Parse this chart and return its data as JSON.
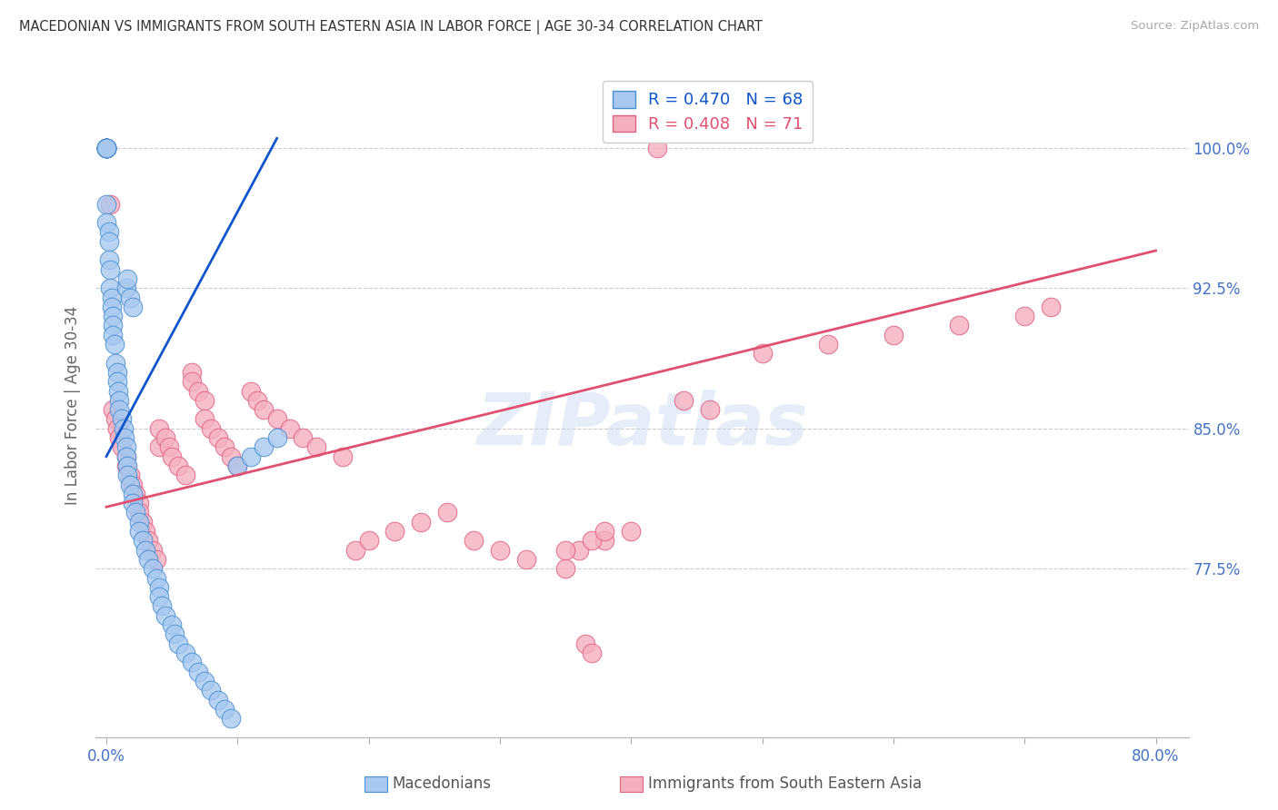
{
  "title": "MACEDONIAN VS IMMIGRANTS FROM SOUTH EASTERN ASIA IN LABOR FORCE | AGE 30-34 CORRELATION CHART",
  "source": "Source: ZipAtlas.com",
  "ylabel_label": "In Labor Force | Age 30-34",
  "yticks": [
    1.0,
    0.925,
    0.85,
    0.775
  ],
  "ytick_labels": [
    "100.0%",
    "92.5%",
    "85.0%",
    "77.5%"
  ],
  "ymin": 0.685,
  "ymax": 1.04,
  "xmin": -0.008,
  "xmax": 0.825,
  "blue_color": "#A8C8F0",
  "pink_color": "#F5B0C0",
  "blue_edge_color": "#4a8fd0",
  "pink_edge_color": "#e06080",
  "blue_line_color": "#1155cc",
  "pink_line_color": "#e05070",
  "axis_tick_color": "#4472c4",
  "title_color": "#333333",
  "source_color": "#aaaaaa",
  "blue_scatter_x": [
    0.0,
    0.0,
    0.0,
    0.0,
    0.0,
    0.0,
    0.0,
    0.0,
    0.0,
    0.0,
    0.002,
    0.002,
    0.002,
    0.003,
    0.003,
    0.004,
    0.004,
    0.005,
    0.005,
    0.005,
    0.006,
    0.007,
    0.008,
    0.008,
    0.009,
    0.01,
    0.01,
    0.012,
    0.013,
    0.014,
    0.015,
    0.015,
    0.016,
    0.016,
    0.018,
    0.02,
    0.02,
    0.022,
    0.025,
    0.025,
    0.028,
    0.03,
    0.032,
    0.035,
    0.038,
    0.04,
    0.04,
    0.042,
    0.045,
    0.05,
    0.052,
    0.055,
    0.06,
    0.065,
    0.07,
    0.075,
    0.08,
    0.085,
    0.09,
    0.095,
    0.1,
    0.11,
    0.12,
    0.13,
    0.015,
    0.016,
    0.018,
    0.02
  ],
  "blue_scatter_y": [
    1.0,
    1.0,
    1.0,
    1.0,
    1.0,
    1.0,
    1.0,
    1.0,
    0.97,
    0.96,
    0.955,
    0.95,
    0.94,
    0.935,
    0.925,
    0.92,
    0.915,
    0.91,
    0.905,
    0.9,
    0.895,
    0.885,
    0.88,
    0.875,
    0.87,
    0.865,
    0.86,
    0.855,
    0.85,
    0.845,
    0.84,
    0.835,
    0.83,
    0.825,
    0.82,
    0.815,
    0.81,
    0.805,
    0.8,
    0.795,
    0.79,
    0.785,
    0.78,
    0.775,
    0.77,
    0.765,
    0.76,
    0.755,
    0.75,
    0.745,
    0.74,
    0.735,
    0.73,
    0.725,
    0.72,
    0.715,
    0.71,
    0.705,
    0.7,
    0.695,
    0.83,
    0.835,
    0.84,
    0.845,
    0.925,
    0.93,
    0.92,
    0.915
  ],
  "pink_scatter_x": [
    0.0,
    0.0,
    0.003,
    0.005,
    0.007,
    0.008,
    0.01,
    0.012,
    0.015,
    0.015,
    0.018,
    0.02,
    0.022,
    0.025,
    0.025,
    0.028,
    0.03,
    0.032,
    0.035,
    0.038,
    0.04,
    0.04,
    0.045,
    0.048,
    0.05,
    0.055,
    0.06,
    0.065,
    0.065,
    0.07,
    0.075,
    0.075,
    0.08,
    0.085,
    0.09,
    0.095,
    0.1,
    0.11,
    0.115,
    0.12,
    0.13,
    0.14,
    0.15,
    0.16,
    0.18,
    0.19,
    0.2,
    0.22,
    0.24,
    0.26,
    0.28,
    0.3,
    0.32,
    0.35,
    0.36,
    0.38,
    0.4,
    0.42,
    0.44,
    0.46,
    0.5,
    0.55,
    0.6,
    0.65,
    0.7,
    0.72,
    0.35,
    0.37,
    0.38,
    0.365,
    0.37
  ],
  "pink_scatter_y": [
    1.0,
    1.0,
    0.97,
    0.86,
    0.855,
    0.85,
    0.845,
    0.84,
    0.835,
    0.83,
    0.825,
    0.82,
    0.815,
    0.81,
    0.805,
    0.8,
    0.795,
    0.79,
    0.785,
    0.78,
    0.84,
    0.85,
    0.845,
    0.84,
    0.835,
    0.83,
    0.825,
    0.88,
    0.875,
    0.87,
    0.865,
    0.855,
    0.85,
    0.845,
    0.84,
    0.835,
    0.83,
    0.87,
    0.865,
    0.86,
    0.855,
    0.85,
    0.845,
    0.84,
    0.835,
    0.785,
    0.79,
    0.795,
    0.8,
    0.805,
    0.79,
    0.785,
    0.78,
    0.775,
    0.785,
    0.79,
    0.795,
    1.0,
    0.865,
    0.86,
    0.89,
    0.895,
    0.9,
    0.905,
    0.91,
    0.915,
    0.785,
    0.79,
    0.795,
    0.735,
    0.73
  ],
  "blue_trend_x": [
    0.0,
    0.13
  ],
  "blue_trend_y": [
    0.835,
    1.005
  ],
  "pink_trend_x": [
    0.0,
    0.8
  ],
  "pink_trend_y": [
    0.808,
    0.945
  ],
  "legend_label_blue": "Macedonians",
  "legend_label_pink": "Immigrants from South Eastern Asia",
  "watermark": "ZIPatlas"
}
